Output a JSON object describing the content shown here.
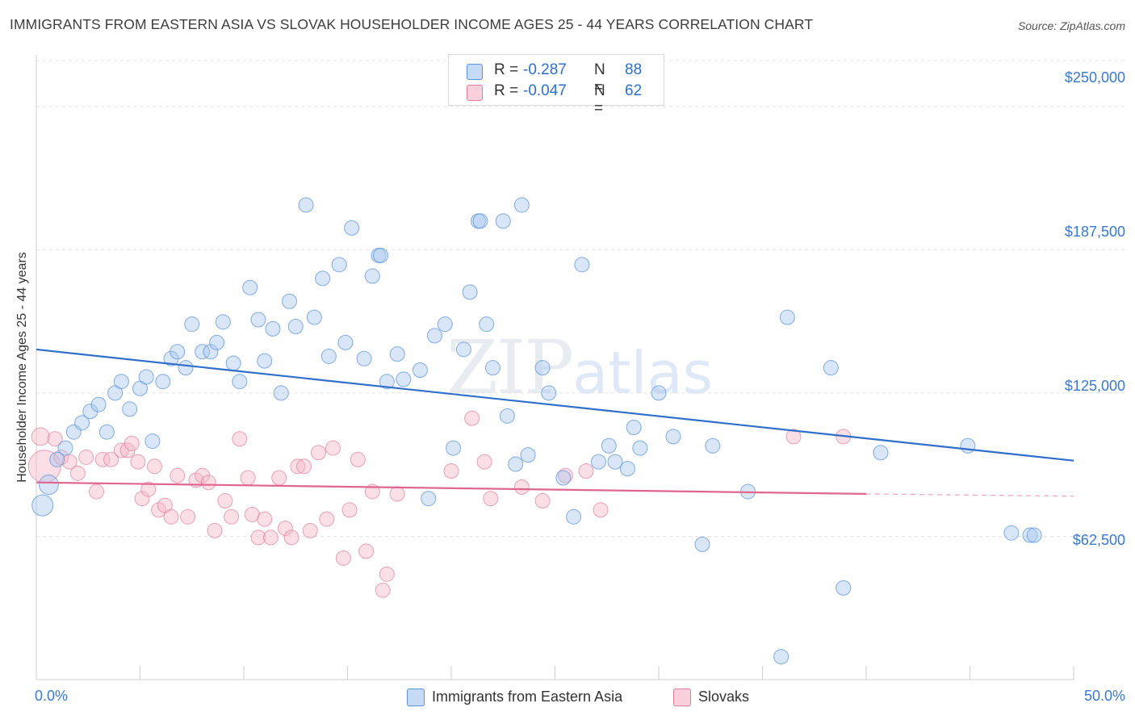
{
  "title": "IMMIGRANTS FROM EASTERN ASIA VS SLOVAK HOUSEHOLDER INCOME AGES 25 - 44 YEARS CORRELATION CHART",
  "source": "Source: ZipAtlas.com",
  "watermark": {
    "zip": "ZIP",
    "atlas": "atlas"
  },
  "legend": {
    "rows": [
      {
        "r_label": "R =",
        "r_value": "-0.287",
        "n_label": "N =",
        "n_value": "88",
        "color": "#a9c8f0"
      },
      {
        "r_label": "R =",
        "r_value": "-0.047",
        "n_label": "N =",
        "n_value": "62",
        "color": "#f5b8c9"
      }
    ]
  },
  "bottom_legend": [
    "Immigrants from Eastern Asia",
    "Slovaks"
  ],
  "colors": {
    "blue_fill": "#a9c8f0",
    "blue_stroke": "#5c93d8",
    "blue_line": "#2f6fcb",
    "pink_fill": "#f5b8c9",
    "pink_stroke": "#e07d9d",
    "pink_line": "#e06690",
    "tick_text": "#3a78d0",
    "grid": "#e3e3e3"
  },
  "chart_data": {
    "type": "scatter",
    "title": "IMMIGRANTS FROM EASTERN ASIA VS SLOVAK HOUSEHOLDER INCOME AGES 25 - 44 YEARS CORRELATION CHART",
    "xlabel": "",
    "ylabel": "Householder Income Ages 25 - 44 years",
    "xlim": [
      0,
      50
    ],
    "ylim": [
      0,
      270000
    ],
    "x_tick_labels": [
      "0.0%",
      "50.0%"
    ],
    "y_ticks": [
      62500,
      125000,
      187500,
      250000
    ],
    "y_tick_labels": [
      "$62,500",
      "$125,000",
      "$187,500",
      "$250,000"
    ],
    "grid": true,
    "legend_position": "top-center",
    "series": [
      {
        "name": "Immigrants from Eastern Asia",
        "r": -0.287,
        "n": 88,
        "trend": {
          "x": [
            0,
            50
          ],
          "y": [
            144000,
            95500
          ]
        },
        "points": [
          [
            0.3,
            76000
          ],
          [
            0.6,
            85000
          ],
          [
            1.0,
            96000
          ],
          [
            1.4,
            101000
          ],
          [
            1.8,
            108000
          ],
          [
            2.2,
            112000
          ],
          [
            2.6,
            117000
          ],
          [
            3.0,
            120000
          ],
          [
            3.4,
            108000
          ],
          [
            3.8,
            125000
          ],
          [
            4.1,
            130000
          ],
          [
            4.5,
            118000
          ],
          [
            5.0,
            127000
          ],
          [
            5.3,
            132000
          ],
          [
            5.6,
            104000
          ],
          [
            6.1,
            130000
          ],
          [
            6.5,
            140000
          ],
          [
            6.8,
            143000
          ],
          [
            7.2,
            136000
          ],
          [
            7.5,
            155000
          ],
          [
            8.0,
            143000
          ],
          [
            8.4,
            143000
          ],
          [
            8.7,
            147000
          ],
          [
            9.0,
            156000
          ],
          [
            9.5,
            138000
          ],
          [
            9.8,
            130000
          ],
          [
            10.3,
            171000
          ],
          [
            10.7,
            157000
          ],
          [
            11.0,
            139000
          ],
          [
            11.4,
            153000
          ],
          [
            11.8,
            125000
          ],
          [
            12.2,
            165000
          ],
          [
            12.5,
            154000
          ],
          [
            13.0,
            207000
          ],
          [
            13.4,
            158000
          ],
          [
            13.8,
            175000
          ],
          [
            14.1,
            141000
          ],
          [
            14.6,
            181000
          ],
          [
            14.9,
            147000
          ],
          [
            15.2,
            197000
          ],
          [
            15.8,
            140000
          ],
          [
            16.2,
            176000
          ],
          [
            16.5,
            185000
          ],
          [
            16.9,
            130000
          ],
          [
            17.4,
            142000
          ],
          [
            17.7,
            131000
          ],
          [
            18.5,
            135000
          ],
          [
            18.9,
            79000
          ],
          [
            19.2,
            150000
          ],
          [
            19.7,
            155000
          ],
          [
            20.1,
            101000
          ],
          [
            20.6,
            144000
          ],
          [
            20.9,
            169000
          ],
          [
            21.3,
            200000
          ],
          [
            21.7,
            155000
          ],
          [
            22.0,
            136000
          ],
          [
            22.5,
            200000
          ],
          [
            22.7,
            115000
          ],
          [
            23.1,
            94000
          ],
          [
            23.4,
            207000
          ],
          [
            23.7,
            98000
          ],
          [
            24.4,
            136000
          ],
          [
            24.7,
            125000
          ],
          [
            25.4,
            88000
          ],
          [
            25.9,
            71000
          ],
          [
            26.3,
            181000
          ],
          [
            27.1,
            95000
          ],
          [
            27.6,
            102000
          ],
          [
            27.9,
            95000
          ],
          [
            28.5,
            92000
          ],
          [
            28.8,
            110000
          ],
          [
            29.1,
            101000
          ],
          [
            30.0,
            125000
          ],
          [
            30.7,
            106000
          ],
          [
            32.1,
            59000
          ],
          [
            32.6,
            102000
          ],
          [
            34.3,
            82000
          ],
          [
            35.9,
            10000
          ],
          [
            36.2,
            158000
          ],
          [
            38.3,
            136000
          ],
          [
            38.9,
            40000
          ],
          [
            40.7,
            99000
          ],
          [
            44.9,
            102000
          ],
          [
            47.0,
            64000
          ],
          [
            47.9,
            63000
          ],
          [
            48.1,
            63000
          ],
          [
            16.6,
            185000
          ],
          [
            21.4,
            200000
          ]
        ]
      },
      {
        "name": "Slovaks",
        "r": -0.047,
        "n": 62,
        "trend": {
          "x": [
            0,
            40
          ],
          "y": [
            86000,
            81000
          ],
          "dashed_extension": {
            "x": [
              40,
              50
            ],
            "y": [
              81000,
              80000
            ]
          }
        },
        "points": [
          [
            0.2,
            106000
          ],
          [
            0.4,
            93000
          ],
          [
            0.9,
            105000
          ],
          [
            1.2,
            97000
          ],
          [
            1.6,
            95000
          ],
          [
            2.0,
            90000
          ],
          [
            2.4,
            97000
          ],
          [
            2.9,
            82000
          ],
          [
            3.2,
            96000
          ],
          [
            3.6,
            96000
          ],
          [
            4.1,
            100000
          ],
          [
            4.4,
            100000
          ],
          [
            4.6,
            103000
          ],
          [
            4.9,
            95000
          ],
          [
            5.1,
            79000
          ],
          [
            5.4,
            83000
          ],
          [
            5.7,
            93000
          ],
          [
            5.9,
            74000
          ],
          [
            6.2,
            76000
          ],
          [
            6.5,
            71000
          ],
          [
            6.8,
            89000
          ],
          [
            7.3,
            71000
          ],
          [
            7.7,
            87000
          ],
          [
            8.0,
            89000
          ],
          [
            8.3,
            86000
          ],
          [
            8.6,
            65000
          ],
          [
            9.1,
            78000
          ],
          [
            9.4,
            71000
          ],
          [
            9.8,
            105000
          ],
          [
            10.2,
            88000
          ],
          [
            10.4,
            72000
          ],
          [
            10.7,
            62000
          ],
          [
            11.0,
            70000
          ],
          [
            11.3,
            62000
          ],
          [
            11.7,
            88000
          ],
          [
            12.0,
            66000
          ],
          [
            12.3,
            62000
          ],
          [
            12.6,
            93000
          ],
          [
            12.9,
            93000
          ],
          [
            13.2,
            65000
          ],
          [
            13.6,
            99000
          ],
          [
            14.0,
            70000
          ],
          [
            14.3,
            101000
          ],
          [
            14.8,
            53000
          ],
          [
            15.1,
            74000
          ],
          [
            15.5,
            96000
          ],
          [
            15.9,
            56000
          ],
          [
            16.2,
            82000
          ],
          [
            16.7,
            39000
          ],
          [
            16.9,
            46000
          ],
          [
            17.4,
            81000
          ],
          [
            20.0,
            91000
          ],
          [
            21.0,
            114000
          ],
          [
            21.6,
            95000
          ],
          [
            21.9,
            79000
          ],
          [
            23.4,
            84000
          ],
          [
            24.4,
            78000
          ],
          [
            25.5,
            89000
          ],
          [
            26.5,
            91000
          ],
          [
            27.2,
            74000
          ],
          [
            36.5,
            106000
          ],
          [
            38.9,
            106000
          ]
        ]
      }
    ],
    "outlines": {
      "first_blue_point_big": true
    }
  }
}
